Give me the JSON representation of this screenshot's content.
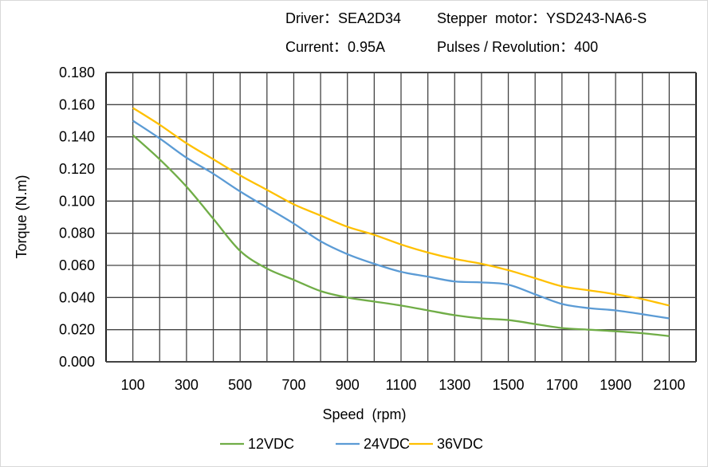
{
  "header": {
    "driver": "Driver：SEA2D34",
    "motor": "Stepper  motor：YSD243-NA6-S",
    "current": "Current：0.95A",
    "pulses": "Pulses / Revolution：400"
  },
  "chart_data": {
    "type": "line",
    "title": "",
    "xlabel": "Speed  (rpm)",
    "ylabel": "Torque (N.m)",
    "xlim": [
      0,
      2200
    ],
    "ylim": [
      0,
      0.18
    ],
    "x_ticks": [
      "100",
      "300",
      "500",
      "700",
      "900",
      "1100",
      "1300",
      "1500",
      "1700",
      "1900",
      "2100"
    ],
    "y_ticks": [
      "0.000",
      "0.020",
      "0.040",
      "0.060",
      "0.080",
      "0.100",
      "0.120",
      "0.140",
      "0.160",
      "0.180"
    ],
    "grid": true,
    "legend_position": "bottom",
    "x": [
      100,
      200,
      300,
      400,
      500,
      600,
      700,
      800,
      900,
      1000,
      1100,
      1200,
      1300,
      1400,
      1500,
      1600,
      1700,
      1800,
      1900,
      2000,
      2100
    ],
    "series": [
      {
        "name": "12VDC",
        "color": "#70ad47",
        "values": [
          0.141,
          0.126,
          0.109,
          0.089,
          0.069,
          0.058,
          0.051,
          0.044,
          0.04,
          0.0375,
          0.035,
          0.032,
          0.029,
          0.027,
          0.026,
          0.0235,
          0.021,
          0.02,
          0.019,
          0.0178,
          0.016
        ]
      },
      {
        "name": "24VDC",
        "color": "#5b9bd5",
        "values": [
          0.15,
          0.139,
          0.127,
          0.117,
          0.106,
          0.096,
          0.086,
          0.075,
          0.067,
          0.061,
          0.056,
          0.053,
          0.05,
          0.0494,
          0.048,
          0.042,
          0.036,
          0.0334,
          0.032,
          0.0296,
          0.027
        ]
      },
      {
        "name": "36VDC",
        "color": "#ffc000",
        "values": [
          0.158,
          0.1475,
          0.136,
          0.126,
          0.116,
          0.107,
          0.098,
          0.091,
          0.084,
          0.079,
          0.073,
          0.068,
          0.064,
          0.061,
          0.057,
          0.052,
          0.047,
          0.0445,
          0.042,
          0.039,
          0.035
        ]
      }
    ]
  }
}
